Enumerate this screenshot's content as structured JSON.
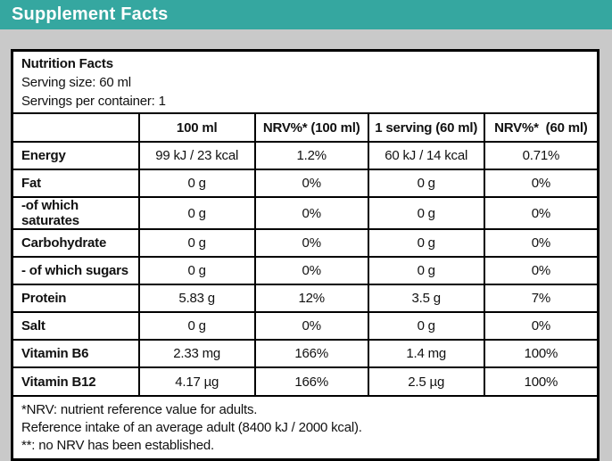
{
  "colors": {
    "accent_teal": "#35a7a0",
    "page_background": "#c9c9c9",
    "table_background": "#ffffff",
    "border_black": "#000000",
    "title_text": "#ffffff"
  },
  "header": {
    "title": "Supplement Facts"
  },
  "panel": {
    "title": "Nutrition Facts",
    "serving_size": "Serving size: 60 ml",
    "servings_per_container": "Servings per container: 1"
  },
  "table": {
    "columns": [
      "",
      "100 ml",
      "NRV%* (100 ml)",
      "1 serving (60 ml)",
      "NRV%*  (60 ml)"
    ],
    "rows": [
      {
        "label": "Energy",
        "per_100ml": "99 kJ / 23 kcal",
        "nrv_100ml": "1.2%",
        "per_serving": "60 kJ / 14 kcal",
        "nrv_serving": "0.71%"
      },
      {
        "label": "Fat",
        "per_100ml": "0 g",
        "nrv_100ml": "0%",
        "per_serving": "0 g",
        "nrv_serving": "0%"
      },
      {
        "label": "-of which saturates",
        "per_100ml": "0 g",
        "nrv_100ml": "0%",
        "per_serving": "0 g",
        "nrv_serving": "0%"
      },
      {
        "label": "Carbohydrate",
        "per_100ml": "0 g",
        "nrv_100ml": "0%",
        "per_serving": "0 g",
        "nrv_serving": "0%"
      },
      {
        "label": "- of which sugars",
        "per_100ml": "0 g",
        "nrv_100ml": "0%",
        "per_serving": "0 g",
        "nrv_serving": "0%"
      },
      {
        "label": "Protein",
        "per_100ml": "5.83 g",
        "nrv_100ml": "12%",
        "per_serving": "3.5 g",
        "nrv_serving": "7%"
      },
      {
        "label": "Salt",
        "per_100ml": "0 g",
        "nrv_100ml": "0%",
        "per_serving": "0 g",
        "nrv_serving": "0%"
      },
      {
        "label": "Vitamin B6",
        "per_100ml": "2.33 mg",
        "nrv_100ml": "166%",
        "per_serving": "1.4 mg",
        "nrv_serving": "100%"
      },
      {
        "label": "Vitamin B12",
        "per_100ml": "4.17 µg",
        "nrv_100ml": "166%",
        "per_serving": "2.5 µg",
        "nrv_serving": "100%"
      }
    ]
  },
  "footnotes": {
    "line1": "*NRV: nutrient reference value for adults.",
    "line2": "Reference intake of an average adult (8400 kJ / 2000 kcal).",
    "line3": "**: no NRV has been established."
  }
}
